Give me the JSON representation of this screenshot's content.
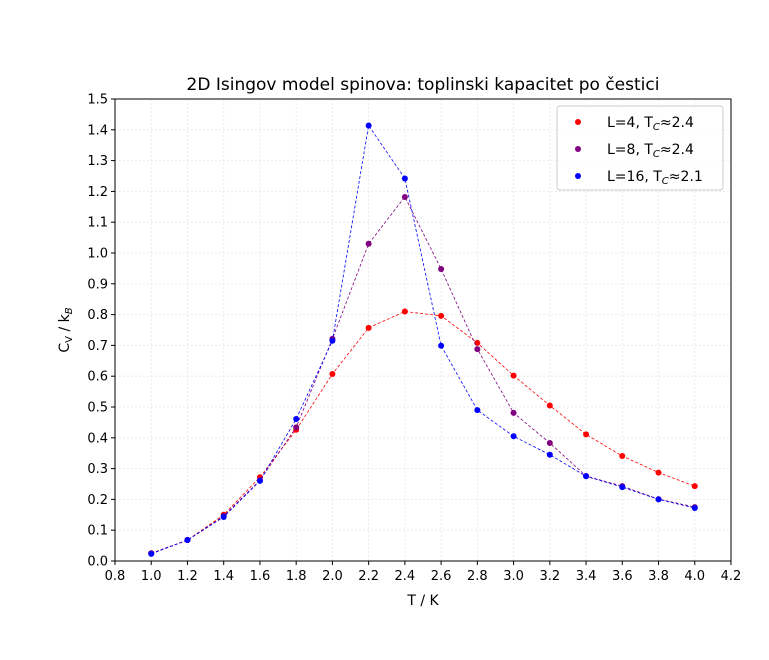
{
  "chart_data": {
    "type": "scatter",
    "title": "2D Isingov model spinova: toplinski kapacitet po čestici",
    "xlabel": "T / K",
    "ylabel": {
      "main": "C",
      "sub1": "V",
      "mid": " / k",
      "sub2": "B"
    },
    "xlim": [
      0.8,
      4.2
    ],
    "ylim": [
      0.0,
      1.5
    ],
    "xticks": [
      "0.8",
      "1.0",
      "1.2",
      "1.4",
      "1.6",
      "1.8",
      "2.0",
      "2.2",
      "2.4",
      "2.6",
      "2.8",
      "3.0",
      "3.2",
      "3.4",
      "3.6",
      "3.8",
      "4.0",
      "4.2"
    ],
    "yticks": [
      "0.0",
      "0.1",
      "0.2",
      "0.3",
      "0.4",
      "0.5",
      "0.6",
      "0.7",
      "0.8",
      "0.9",
      "1.0",
      "1.1",
      "1.2",
      "1.3",
      "1.4",
      "1.5"
    ],
    "grid": true,
    "legend_position": "top-right",
    "x": [
      1.0,
      1.2,
      1.4,
      1.6,
      1.8,
      2.0,
      2.2,
      2.4,
      2.6,
      2.8,
      3.0,
      3.2,
      3.4,
      3.6,
      3.8,
      4.0
    ],
    "series": [
      {
        "name": "L=4, T",
        "name_sub": "C",
        "name_rest": "≈2.4",
        "color": "#ff0000",
        "values": [
          0.025,
          0.068,
          0.15,
          0.272,
          0.426,
          0.607,
          0.757,
          0.81,
          0.796,
          0.708,
          0.602,
          0.505,
          0.411,
          0.341,
          0.287,
          0.243
        ]
      },
      {
        "name": "L=8, T",
        "name_sub": "C",
        "name_rest": "≈2.4",
        "color": "#800080",
        "values": [
          0.025,
          0.068,
          0.146,
          0.262,
          0.434,
          0.721,
          1.03,
          1.182,
          0.948,
          0.688,
          0.481,
          0.383,
          0.276,
          0.243,
          0.201,
          0.175
        ]
      },
      {
        "name": "L=16, T",
        "name_sub": "C",
        "name_rest": "≈2.1",
        "color": "#0000ff",
        "values": [
          0.023,
          0.068,
          0.143,
          0.26,
          0.461,
          0.715,
          1.414,
          1.242,
          0.699,
          0.49,
          0.405,
          0.345,
          0.275,
          0.24,
          0.2,
          0.172
        ]
      }
    ]
  }
}
